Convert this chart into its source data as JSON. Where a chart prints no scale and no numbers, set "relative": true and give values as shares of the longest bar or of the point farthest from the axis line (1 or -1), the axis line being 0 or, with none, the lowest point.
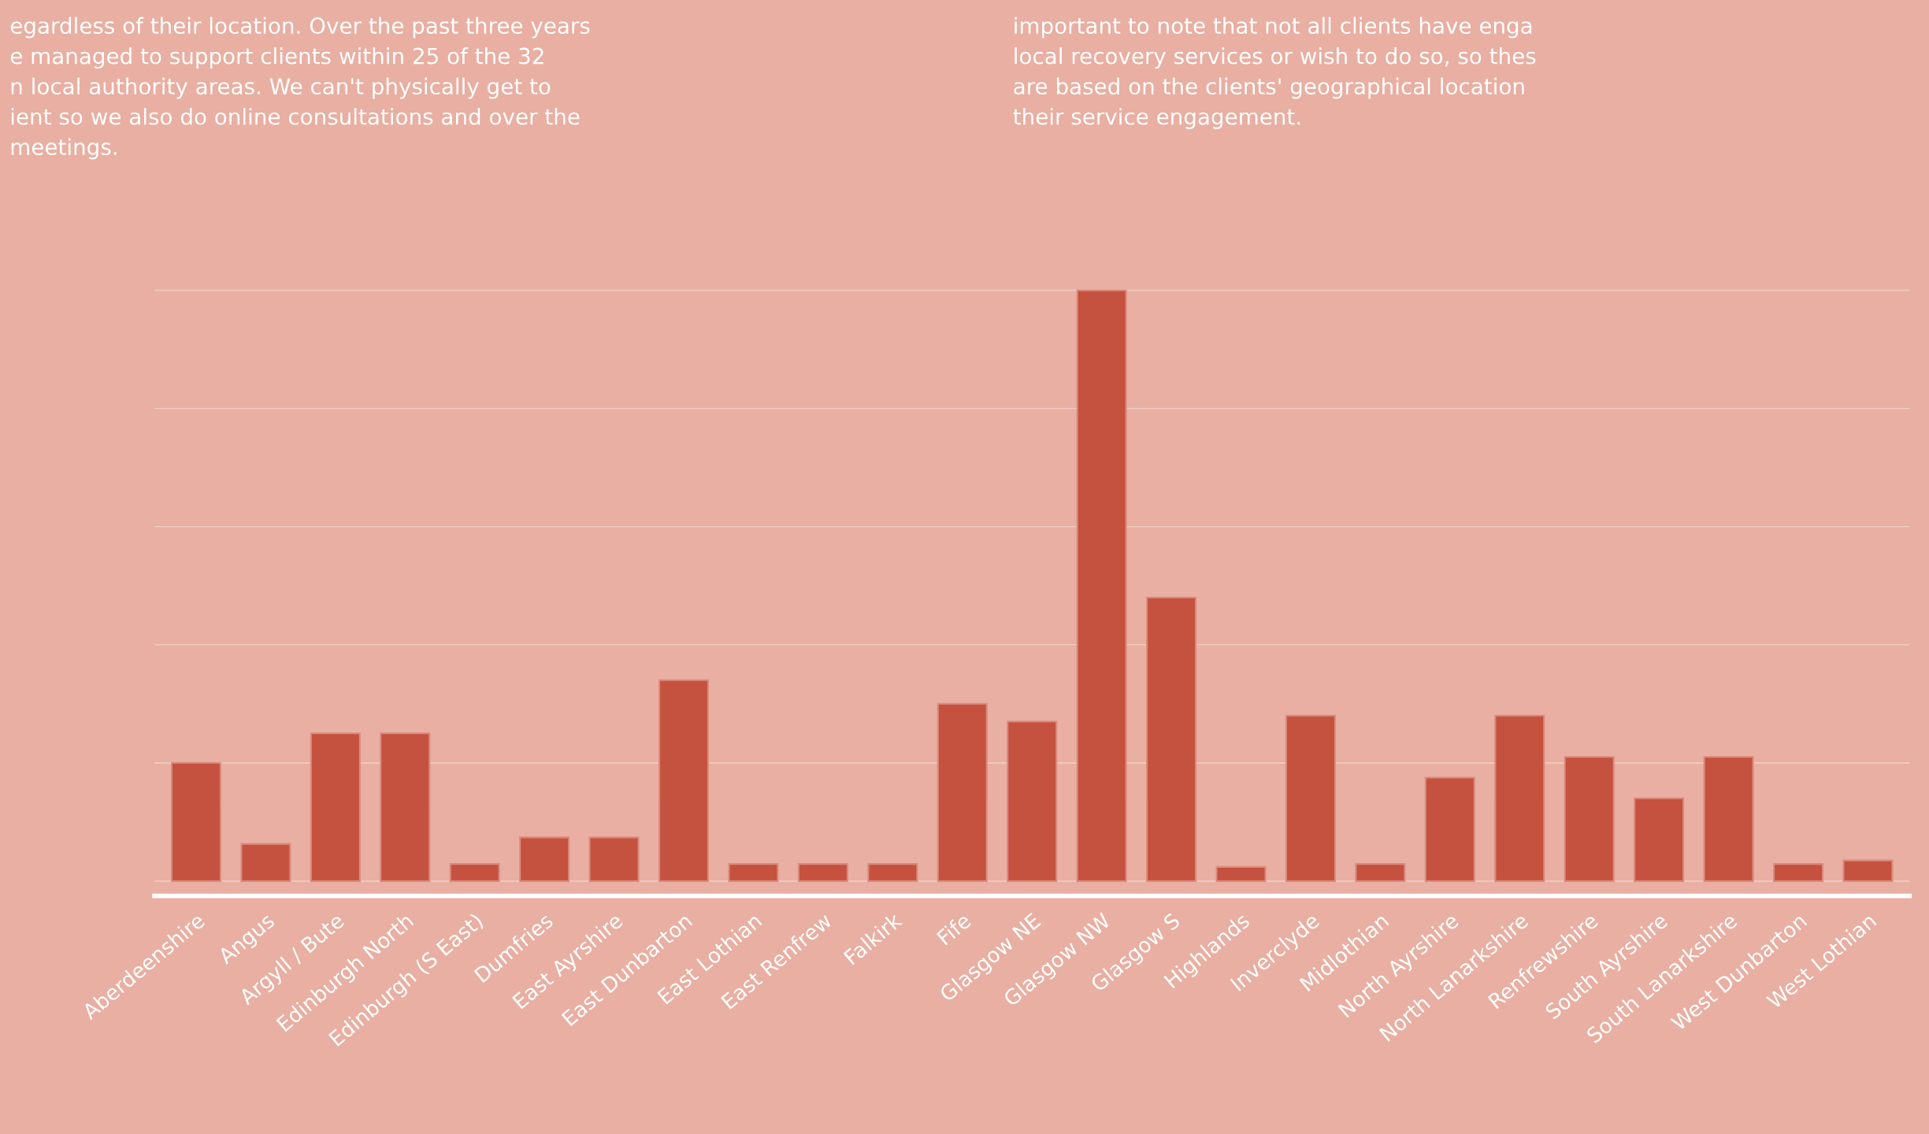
{
  "chart_data": {
    "type": "bar",
    "relative": true,
    "color": "#c5513f",
    "grid": "y",
    "categories": [
      "Aberdeenshire",
      "Angus",
      "Argyll / Bute",
      "Edinburgh North",
      "Edinburgh (S East)",
      "Dumfries",
      "East Ayrshire",
      "East Dunbarton",
      "East Lothian",
      "East Renfrew",
      "Falkirk",
      "Fife",
      "Glasgow NE",
      "Glasgow NW",
      "Glasgow S",
      "Highlands",
      "Inverclyde",
      "Midlothian",
      "North Ayrshire",
      "North Lanarkshire",
      "Renfrewshire",
      "South Ayrshire",
      "South Lanarkshire",
      "West Dunbarton",
      "West Lothian"
    ],
    "values": [
      0.2,
      0.063,
      0.25,
      0.25,
      0.029,
      0.074,
      0.074,
      0.34,
      0.029,
      0.029,
      0.029,
      0.3,
      0.27,
      1,
      0.48,
      0.024,
      0.28,
      0.029,
      0.175,
      0.28,
      0.21,
      0.14,
      0.21,
      0.029,
      0.035
    ],
    "annotations": [
      "egardless of their location. Over the past three years\ne managed to support clients within 25 of the 32\nn local authority areas. We can't physically get to\nient so we also do online consultations and over the\nmeetings.",
      "important to note that not all clients have enga\nlocal recovery services or wish to do so, so thes\nare based on the clients' geographical location\ntheir service engagement."
    ]
  }
}
